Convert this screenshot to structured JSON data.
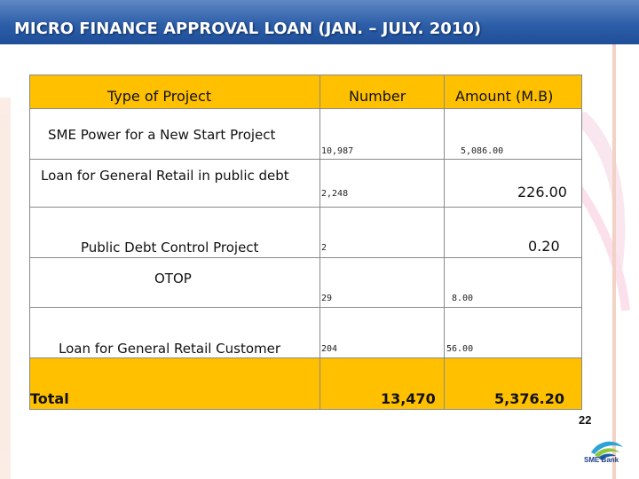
{
  "slide": {
    "title": "MICRO FINANCE APPROVAL LOAN (JAN. – JULY. 2010)",
    "page_number": "22",
    "logo_text": "SME Bank"
  },
  "table": {
    "headers": [
      "Type of Project",
      "Number",
      "Amount (M.B)"
    ],
    "rows": [
      {
        "type": "SME Power for a New Start Project",
        "number": "10,987",
        "amount": "5,086.00"
      },
      {
        "type": "Loan for General Retail in public debt",
        "number": "2,248",
        "amount": "226.00"
      },
      {
        "type": "Public Debt Control Project",
        "number": "2",
        "amount": "0.20"
      },
      {
        "type": "OTOP",
        "number": "29",
        "amount": "8.00"
      },
      {
        "type": "Loan for General Retail Customer",
        "number": "204",
        "amount": "56.00"
      }
    ],
    "total": {
      "label": "Total",
      "number": "13,470",
      "amount": "5,376.20"
    }
  },
  "colors": {
    "title_bar": "#2d5ea8",
    "header_fill": "#ffc000",
    "total_fill": "#ffc000"
  }
}
